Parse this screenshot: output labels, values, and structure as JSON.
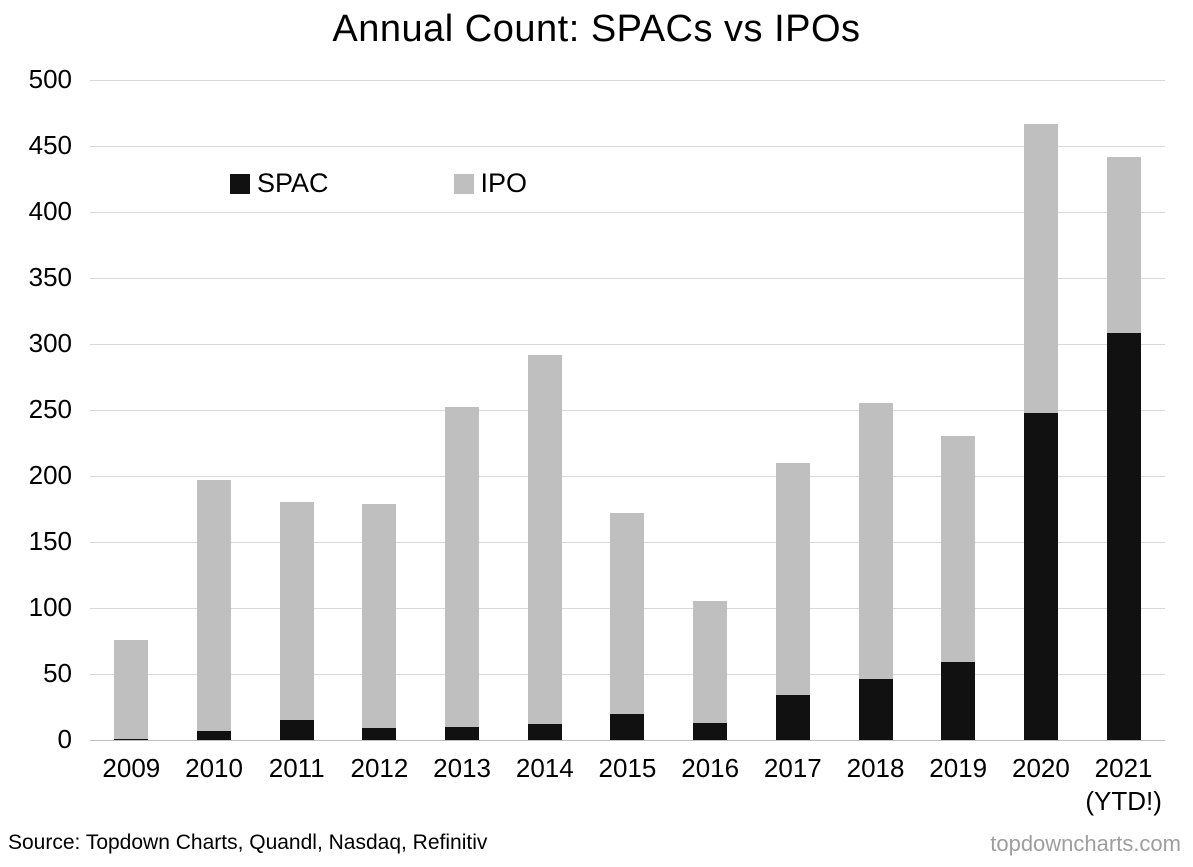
{
  "title": "Annual Count: SPACs vs IPOs",
  "legend": {
    "spac_label": "SPAC",
    "ipo_label": "IPO"
  },
  "footer": {
    "source": "Source: Topdown Charts, Quandl, Nasdaq, Refinitiv",
    "site": "topdowncharts.com"
  },
  "colors": {
    "spac": "#111111",
    "ipo": "#bfbfbf",
    "gridline": "#d9d9d9",
    "watermark": "#9e9e9e"
  },
  "chart_data": {
    "type": "bar",
    "stacked": true,
    "title": "Annual Count: SPACs vs IPOs",
    "categories": [
      "2009",
      "2010",
      "2011",
      "2012",
      "2013",
      "2014",
      "2015",
      "2016",
      "2017",
      "2018",
      "2019",
      "2020",
      "2021\n(YTD!)"
    ],
    "series": [
      {
        "name": "SPAC",
        "color": "#111111",
        "values": [
          1,
          7,
          15,
          9,
          10,
          12,
          20,
          13,
          34,
          46,
          59,
          248,
          308
        ]
      },
      {
        "name": "IPO",
        "color": "#bfbfbf",
        "values": [
          75,
          190,
          165,
          170,
          242,
          280,
          152,
          92,
          176,
          209,
          171,
          219,
          134
        ]
      }
    ],
    "totals": [
      76,
      197,
      180,
      179,
      252,
      292,
      172,
      105,
      210,
      255,
      230,
      467,
      442
    ],
    "ylim": [
      0,
      500
    ],
    "ytick_step": 50,
    "grid": true,
    "legend_position": "upper-left-inside",
    "xlabel": "",
    "ylabel": ""
  }
}
